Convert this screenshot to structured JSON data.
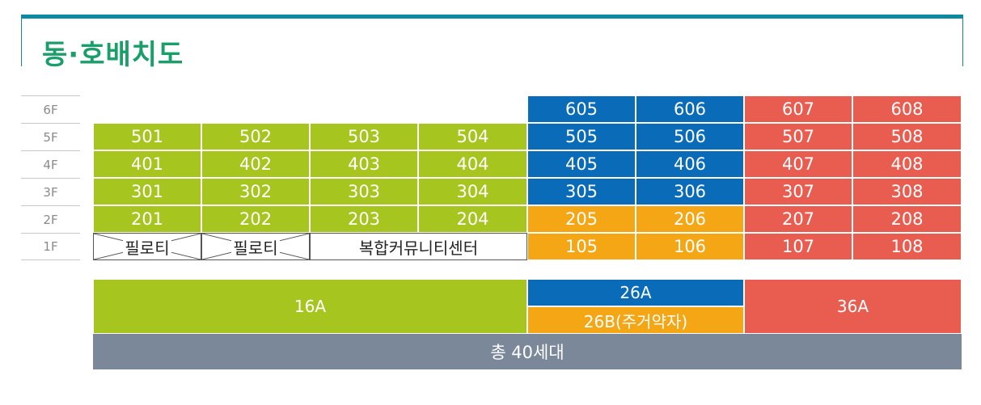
{
  "title": "동·호배치도",
  "floors": [
    "6F",
    "5F",
    "4F",
    "3F",
    "2F",
    "1F"
  ],
  "rows": [
    {
      "floor": "6F",
      "units": [
        "",
        "",
        "",
        "",
        "605",
        "606",
        "607",
        "608"
      ]
    },
    {
      "floor": "5F",
      "units": [
        "501",
        "502",
        "503",
        "504",
        "505",
        "506",
        "507",
        "508"
      ]
    },
    {
      "floor": "4F",
      "units": [
        "401",
        "402",
        "403",
        "404",
        "405",
        "406",
        "407",
        "408"
      ]
    },
    {
      "floor": "3F",
      "units": [
        "301",
        "302",
        "303",
        "304",
        "305",
        "306",
        "307",
        "308"
      ]
    },
    {
      "floor": "2F",
      "units": [
        "201",
        "202",
        "203",
        "204",
        "205",
        "206",
        "207",
        "208"
      ]
    },
    {
      "floor": "1F",
      "units": [
        "필로티",
        "필로티",
        "복합커뮤니티센터",
        "105",
        "106",
        "107",
        "108"
      ]
    }
  ],
  "legend": {
    "type_16a": "16A",
    "type_26a": "26A",
    "type_26b": "26B(주거약자)",
    "type_36a": "36A",
    "total": "총 40세대"
  },
  "colors": {
    "16A": "#a6c51f",
    "26A": "#0a6cb8",
    "26B": "#f4a615",
    "36A": "#e95d50",
    "total": "#7b8899",
    "title": "#1a9e6a",
    "frame": "#0e8aa0"
  }
}
